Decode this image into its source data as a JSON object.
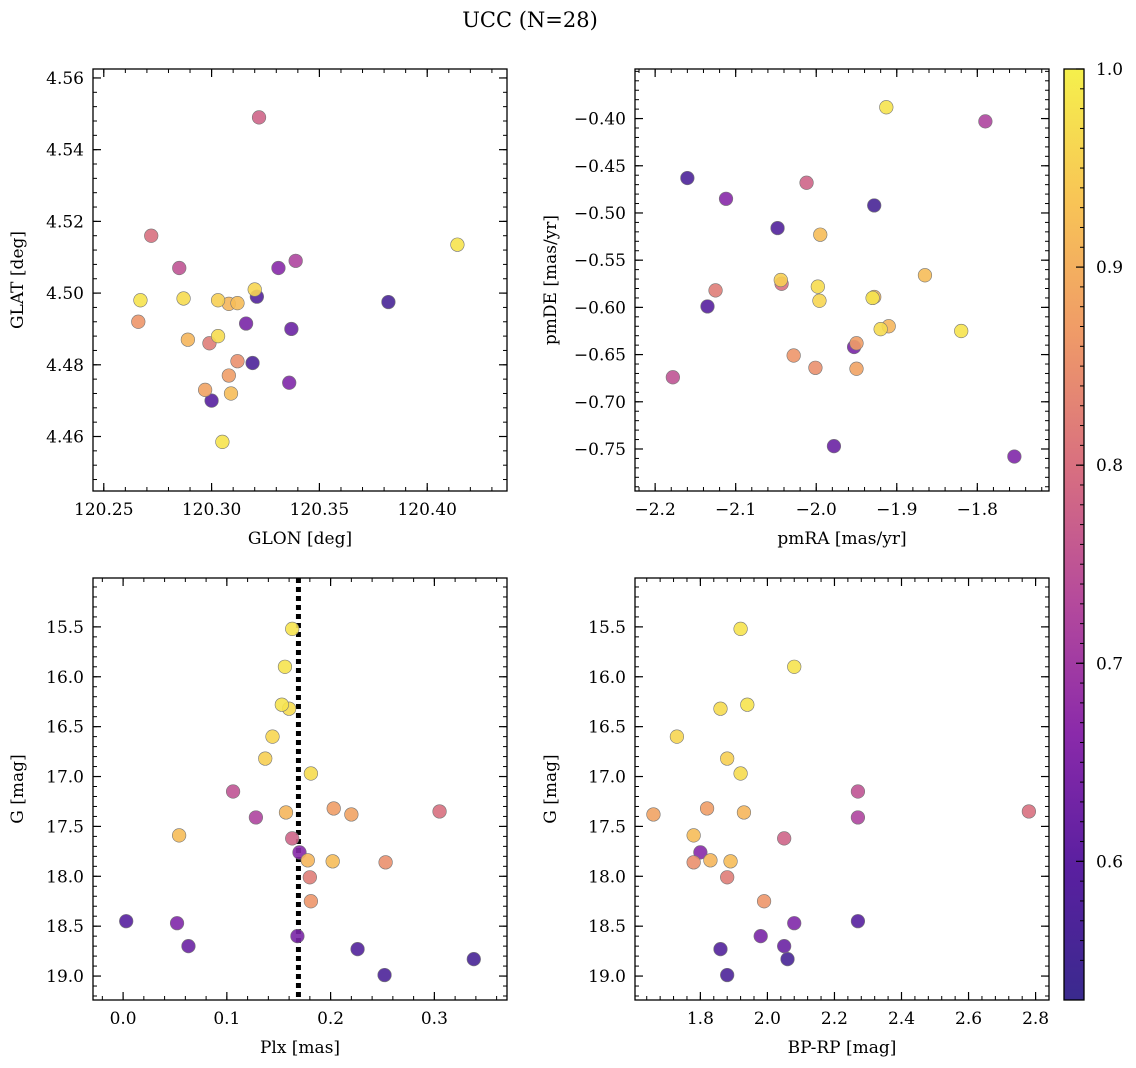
{
  "figure": {
    "suptitle": "UCC (N=28)"
  },
  "colorbar": {
    "min": 0.53,
    "max": 1.0,
    "ticks": [
      {
        "v": 1.0,
        "label": "1.0"
      },
      {
        "v": 0.9,
        "label": "0.9"
      },
      {
        "v": 0.8,
        "label": "0.8"
      },
      {
        "v": 0.7,
        "label": "0.7"
      },
      {
        "v": 0.6,
        "label": "0.6"
      }
    ],
    "colormap": "plasma",
    "stops": [
      "#3a2a8e",
      "#5a1fa0",
      "#8a2aaa",
      "#b54a9c",
      "#d86f80",
      "#ef9a68",
      "#f8c456",
      "#f5f04c"
    ]
  },
  "stars": [
    {
      "glon": 120.322,
      "glat": 4.549,
      "pmra": -2.012,
      "pmde": -0.468,
      "plx": 0.163,
      "g": 17.62,
      "bprp": 2.05,
      "p": 0.78
    },
    {
      "glon": 120.414,
      "glat": 4.5135,
      "pmra": -1.913,
      "pmde": -0.388,
      "plx": 0.156,
      "g": 15.9,
      "bprp": 2.08,
      "p": 0.98
    },
    {
      "glon": 120.272,
      "glat": 4.516,
      "pmra": -2.043,
      "pmde": -0.575,
      "plx": 0.305,
      "g": 17.35,
      "bprp": 2.78,
      "p": 0.8
    },
    {
      "glon": 120.285,
      "glat": 4.507,
      "pmra": -2.178,
      "pmde": -0.674,
      "plx": 0.106,
      "g": 17.15,
      "bprp": 2.27,
      "p": 0.75
    },
    {
      "glon": 120.339,
      "glat": 4.509,
      "pmra": -1.79,
      "pmde": -0.403,
      "plx": 0.128,
      "g": 17.41,
      "bprp": 2.27,
      "p": 0.72
    },
    {
      "glon": 120.331,
      "glat": 4.507,
      "pmra": -2.112,
      "pmde": -0.485,
      "plx": 0.17,
      "g": 17.76,
      "bprp": 1.8,
      "p": 0.66
    },
    {
      "glon": 120.267,
      "glat": 4.498,
      "pmra": -1.93,
      "pmde": -0.59,
      "plx": 0.153,
      "g": 16.28,
      "bprp": 1.94,
      "p": 0.98
    },
    {
      "glon": 120.287,
      "glat": 4.4985,
      "pmra": -1.998,
      "pmde": -0.578,
      "plx": 0.16,
      "g": 16.32,
      "bprp": 1.86,
      "p": 0.97
    },
    {
      "glon": 120.303,
      "glat": 4.498,
      "pmra": -2.044,
      "pmde": -0.571,
      "plx": 0.137,
      "g": 16.82,
      "bprp": 1.88,
      "p": 0.95
    },
    {
      "glon": 120.308,
      "glat": 4.497,
      "pmra": -1.928,
      "pmde": -0.589,
      "plx": 0.178,
      "g": 17.84,
      "bprp": 1.83,
      "p": 0.91
    },
    {
      "glon": 120.312,
      "glat": 4.4972,
      "pmra": -1.865,
      "pmde": -0.566,
      "plx": 0.054,
      "g": 17.59,
      "bprp": 1.78,
      "p": 0.92
    },
    {
      "glon": 120.32,
      "glat": 4.501,
      "pmra": -1.996,
      "pmde": -0.593,
      "plx": 0.144,
      "g": 16.6,
      "bprp": 1.73,
      "p": 0.96
    },
    {
      "glon": 120.321,
      "glat": 4.499,
      "pmra": -2.048,
      "pmde": -0.516,
      "plx": 0.226,
      "g": 18.73,
      "bprp": 1.86,
      "p": 0.58
    },
    {
      "glon": 120.382,
      "glat": 4.4975,
      "pmra": -1.928,
      "pmde": -0.492,
      "plx": 0.338,
      "g": 18.83,
      "bprp": 2.06,
      "p": 0.56
    },
    {
      "glon": 120.266,
      "glat": 4.492,
      "pmra": -2.028,
      "pmde": -0.651,
      "plx": 0.181,
      "g": 18.25,
      "bprp": 1.99,
      "p": 0.86
    },
    {
      "glon": 120.289,
      "glat": 4.487,
      "pmra": -1.91,
      "pmde": -0.62,
      "plx": 0.157,
      "g": 17.36,
      "bprp": 1.93,
      "p": 0.91
    },
    {
      "glon": 120.303,
      "glat": 4.488,
      "pmra": -1.92,
      "pmde": -0.623,
      "plx": 0.181,
      "g": 16.97,
      "bprp": 1.92,
      "p": 0.97
    },
    {
      "glon": 120.316,
      "glat": 4.4915,
      "pmra": -1.953,
      "pmde": -0.642,
      "plx": 0.168,
      "g": 18.6,
      "bprp": 1.98,
      "p": 0.64
    },
    {
      "glon": 120.337,
      "glat": 4.49,
      "pmra": -1.978,
      "pmde": -0.747,
      "plx": 0.063,
      "g": 18.7,
      "bprp": 2.05,
      "p": 0.62
    },
    {
      "glon": 120.299,
      "glat": 4.486,
      "pmra": -2.125,
      "pmde": -0.582,
      "plx": 0.18,
      "g": 18.01,
      "bprp": 1.88,
      "p": 0.82
    },
    {
      "glon": 120.312,
      "glat": 4.481,
      "pmra": -2.001,
      "pmde": -0.664,
      "plx": 0.253,
      "g": 17.86,
      "bprp": 1.78,
      "p": 0.85
    },
    {
      "glon": 120.319,
      "glat": 4.4805,
      "pmra": -2.16,
      "pmde": -0.463,
      "plx": 0.252,
      "g": 18.99,
      "bprp": 1.88,
      "p": 0.57
    },
    {
      "glon": 120.308,
      "glat": 4.477,
      "pmra": -1.95,
      "pmde": -0.638,
      "plx": 0.203,
      "g": 17.32,
      "bprp": 1.82,
      "p": 0.87
    },
    {
      "glon": 120.336,
      "glat": 4.475,
      "pmra": -1.754,
      "pmde": -0.758,
      "plx": 0.052,
      "g": 18.47,
      "bprp": 2.08,
      "p": 0.65
    },
    {
      "glon": 120.297,
      "glat": 4.473,
      "pmra": -1.95,
      "pmde": -0.665,
      "plx": 0.22,
      "g": 17.38,
      "bprp": 1.66,
      "p": 0.88
    },
    {
      "glon": 120.309,
      "glat": 4.472,
      "pmra": -1.995,
      "pmde": -0.523,
      "plx": 0.202,
      "g": 17.85,
      "bprp": 1.89,
      "p": 0.92
    },
    {
      "glon": 120.3,
      "glat": 4.47,
      "pmra": -2.135,
      "pmde": -0.599,
      "plx": 0.003,
      "g": 18.45,
      "bprp": 2.27,
      "p": 0.59
    },
    {
      "glon": 120.305,
      "glat": 4.4585,
      "pmra": -1.82,
      "pmde": -0.625,
      "plx": 0.163,
      "g": 15.52,
      "bprp": 1.92,
      "p": 0.98
    }
  ],
  "chart_data": [
    {
      "type": "scatter",
      "xkey": "glon",
      "ykey": "glat",
      "xlabel": "GLON [deg]",
      "ylabel": "GLAT [deg]",
      "xlim": [
        120.245,
        120.437
      ],
      "ylim": [
        4.4448,
        4.5625
      ],
      "invert_y": false,
      "xticks": [
        {
          "v": 120.25,
          "label": "120.25"
        },
        {
          "v": 120.3,
          "label": "120.30"
        },
        {
          "v": 120.35,
          "label": "120.35"
        },
        {
          "v": 120.4,
          "label": "120.40"
        }
      ],
      "yticks": [
        {
          "v": 4.46,
          "label": "4.46"
        },
        {
          "v": 4.48,
          "label": "4.48"
        },
        {
          "v": 4.5,
          "label": "4.50"
        },
        {
          "v": 4.52,
          "label": "4.52"
        },
        {
          "v": 4.54,
          "label": "4.54"
        },
        {
          "v": 4.56,
          "label": "4.56"
        }
      ]
    },
    {
      "type": "scatter",
      "xkey": "pmra",
      "ykey": "pmde",
      "xlabel": "pmRA [mas/yr]",
      "ylabel": "pmDE [mas/yr]",
      "xlim": [
        -2.225,
        -1.711
      ],
      "ylim": [
        -0.7945,
        -0.3475
      ],
      "invert_y": false,
      "xticks": [
        {
          "v": -2.2,
          "label": "−2.2"
        },
        {
          "v": -2.1,
          "label": "−2.1"
        },
        {
          "v": -2.0,
          "label": "−2.0"
        },
        {
          "v": -1.9,
          "label": "−1.9"
        },
        {
          "v": -1.8,
          "label": "−1.8"
        }
      ],
      "yticks": [
        {
          "v": -0.75,
          "label": "−0.75"
        },
        {
          "v": -0.7,
          "label": "−0.70"
        },
        {
          "v": -0.65,
          "label": "−0.65"
        },
        {
          "v": -0.6,
          "label": "−0.60"
        },
        {
          "v": -0.55,
          "label": "−0.55"
        },
        {
          "v": -0.5,
          "label": "−0.50"
        },
        {
          "v": -0.45,
          "label": "−0.45"
        },
        {
          "v": -0.4,
          "label": "−0.40"
        }
      ]
    },
    {
      "type": "scatter",
      "xkey": "plx",
      "ykey": "g",
      "xlabel": "Plx [mas]",
      "ylabel": "G [mag]",
      "xlim": [
        -0.029,
        0.37
      ],
      "ylim": [
        15.01,
        19.24
      ],
      "invert_y": true,
      "vline": 0.169,
      "xticks": [
        {
          "v": 0.0,
          "label": "0.0"
        },
        {
          "v": 0.1,
          "label": "0.1"
        },
        {
          "v": 0.2,
          "label": "0.2"
        },
        {
          "v": 0.3,
          "label": "0.3"
        }
      ],
      "yticks": [
        {
          "v": 15.5,
          "label": "15.5"
        },
        {
          "v": 16.0,
          "label": "16.0"
        },
        {
          "v": 16.5,
          "label": "16.5"
        },
        {
          "v": 17.0,
          "label": "17.0"
        },
        {
          "v": 17.5,
          "label": "17.5"
        },
        {
          "v": 18.0,
          "label": "18.0"
        },
        {
          "v": 18.5,
          "label": "18.5"
        },
        {
          "v": 19.0,
          "label": "19.0"
        }
      ]
    },
    {
      "type": "scatter",
      "xkey": "bprp",
      "ykey": "g",
      "xlabel": "BP-RP [mag]",
      "ylabel": "G [mag]",
      "xlim": [
        1.605,
        2.84
      ],
      "ylim": [
        15.01,
        19.24
      ],
      "invert_y": true,
      "xticks": [
        {
          "v": 1.8,
          "label": "1.8"
        },
        {
          "v": 2.0,
          "label": "2.0"
        },
        {
          "v": 2.2,
          "label": "2.2"
        },
        {
          "v": 2.4,
          "label": "2.4"
        },
        {
          "v": 2.6,
          "label": "2.6"
        },
        {
          "v": 2.8,
          "label": "2.8"
        }
      ],
      "yticks": [
        {
          "v": 15.5,
          "label": "15.5"
        },
        {
          "v": 16.0,
          "label": "16.0"
        },
        {
          "v": 16.5,
          "label": "16.5"
        },
        {
          "v": 17.0,
          "label": "17.0"
        },
        {
          "v": 17.5,
          "label": "17.5"
        },
        {
          "v": 18.0,
          "label": "18.0"
        },
        {
          "v": 18.5,
          "label": "18.5"
        },
        {
          "v": 19.0,
          "label": "19.0"
        }
      ]
    }
  ]
}
